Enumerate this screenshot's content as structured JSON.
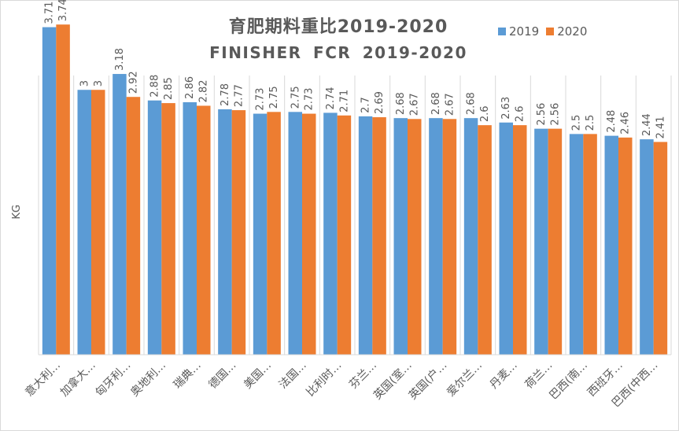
{
  "chart_data": {
    "type": "bar",
    "title": "育肥期料重比2019-2020",
    "subtitle": "FINISHER FCR 2019-2020",
    "ylabel": "KG",
    "xlabel": "",
    "ylim": [
      0,
      4
    ],
    "grid": false,
    "legend_position": "top-right",
    "categories": [
      "意大利…",
      "加拿大…",
      "匈牙利…",
      "奥地利…",
      "瑞典…",
      "德国…",
      "美国…",
      "法国…",
      "比利时…",
      "芬兰…",
      "英国(室…",
      "英国(户…",
      "爱尔兰…",
      "丹麦…",
      "荷兰…",
      "巴西(南…",
      "西班牙…",
      "巴西(中西…"
    ],
    "series": [
      {
        "name": "2019",
        "color": "#5b9bd5",
        "values": [
          3.71,
          3,
          3.18,
          2.88,
          2.86,
          2.78,
          2.73,
          2.75,
          2.74,
          2.7,
          2.68,
          2.68,
          2.68,
          2.63,
          2.56,
          2.5,
          2.48,
          2.44
        ]
      },
      {
        "name": "2020",
        "color": "#ed7d31",
        "values": [
          3.74,
          3,
          2.92,
          2.85,
          2.82,
          2.77,
          2.75,
          2.73,
          2.71,
          2.69,
          2.67,
          2.67,
          2.6,
          2.6,
          2.56,
          2.5,
          2.46,
          2.41
        ]
      }
    ],
    "labels": [
      [
        "3.71",
        "3",
        "3.18",
        "2.88",
        "2.86",
        "2.78",
        "2.73",
        "2.75",
        "2.74",
        "2.7",
        "2.68",
        "2.68",
        "2.68",
        "2.63",
        "2.56",
        "2.5",
        "2.48",
        "2.44"
      ],
      [
        "3.74",
        "3",
        "2.92",
        "2.85",
        "2.82",
        "2.77",
        "2.75",
        "2.73",
        "2.71",
        "2.69",
        "2.67",
        "2.67",
        "2.6",
        "2.6",
        "2.56",
        "2.5",
        "2.46",
        "2.41"
      ]
    ]
  }
}
